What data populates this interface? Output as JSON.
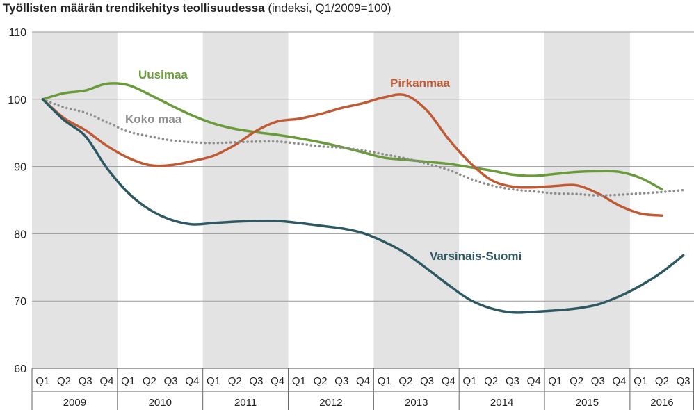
{
  "title": "Työllisten määrän trendikehitys teollisuudessa",
  "subtitle": "(indeksi, Q1/2009=100)",
  "chart_data": {
    "type": "line",
    "title": "Työllisten määrän trendikehitys teollisuudessa",
    "subtitle": "(indeksi, Q1/2009=100)",
    "xlabel": "",
    "ylabel": "",
    "ylim": [
      60,
      110
    ],
    "yticks": [
      60,
      70,
      80,
      90,
      100,
      110
    ],
    "quarters": [
      "Q1",
      "Q2",
      "Q3",
      "Q4",
      "Q1",
      "Q2",
      "Q3",
      "Q4",
      "Q1",
      "Q2",
      "Q3",
      "Q4",
      "Q1",
      "Q2",
      "Q3",
      "Q4",
      "Q1",
      "Q2",
      "Q3",
      "Q4",
      "Q1",
      "Q2",
      "Q3",
      "Q4",
      "Q1",
      "Q2",
      "Q3",
      "Q4",
      "Q1",
      "Q2",
      "Q3"
    ],
    "years": [
      "2009",
      "2010",
      "2011",
      "2012",
      "2013",
      "2014",
      "2015",
      "2016"
    ],
    "grid": "horizontal",
    "year_band_shading": "alternating grey",
    "series": [
      {
        "name": "Uusimaa",
        "color": "#6a9b3b",
        "style": "solid",
        "values": [
          100,
          100.9,
          101.3,
          102.3,
          102.1,
          100.7,
          99.1,
          97.6,
          96.4,
          95.6,
          95.1,
          94.7,
          94.2,
          93.6,
          92.9,
          92.1,
          91.3,
          91.0,
          90.7,
          90.4,
          89.9,
          89.4,
          88.8,
          88.6,
          88.9,
          89.2,
          89.3,
          89.2,
          88.3,
          86.6,
          null
        ]
      },
      {
        "name": "Pirkanmaa",
        "color": "#c05a35",
        "style": "solid",
        "values": [
          100,
          97.2,
          95.4,
          93.1,
          91.3,
          90.2,
          90.2,
          90.8,
          91.6,
          93.2,
          95.3,
          96.7,
          97.1,
          97.8,
          98.7,
          99.4,
          100.3,
          100.6,
          98.3,
          94.1,
          90.6,
          88.0,
          87.0,
          86.9,
          87.1,
          87.2,
          86.0,
          84.2,
          83.0,
          82.7,
          null
        ]
      },
      {
        "name": "Koko maa",
        "color": "#8d8d8d",
        "style": "dotted",
        "values": [
          100,
          98.8,
          98.0,
          96.6,
          95.2,
          94.5,
          93.9,
          93.6,
          93.5,
          93.6,
          93.7,
          93.7,
          93.4,
          93.0,
          92.8,
          92.4,
          91.8,
          91.2,
          90.4,
          89.5,
          88.2,
          87.2,
          86.6,
          86.3,
          86.0,
          85.9,
          85.7,
          85.8,
          86.0,
          86.2,
          86.5
        ]
      },
      {
        "name": "Varsinais-Suomi",
        "color": "#2e5963",
        "style": "solid",
        "values": [
          100,
          96.9,
          94.5,
          89.8,
          86.1,
          83.6,
          82.1,
          81.4,
          81.6,
          81.8,
          81.9,
          81.9,
          81.6,
          81.2,
          80.8,
          80.1,
          78.8,
          77.1,
          74.8,
          72.4,
          70.2,
          68.9,
          68.3,
          68.4,
          68.6,
          68.9,
          69.5,
          70.7,
          72.3,
          74.3,
          76.8
        ]
      }
    ],
    "labels": {
      "uusimaa": "Uusimaa",
      "pirkanmaa": "Pirkanmaa",
      "koko_maa": "Koko maa",
      "varsinais_suomi": "Varsinais-Suomi"
    }
  }
}
